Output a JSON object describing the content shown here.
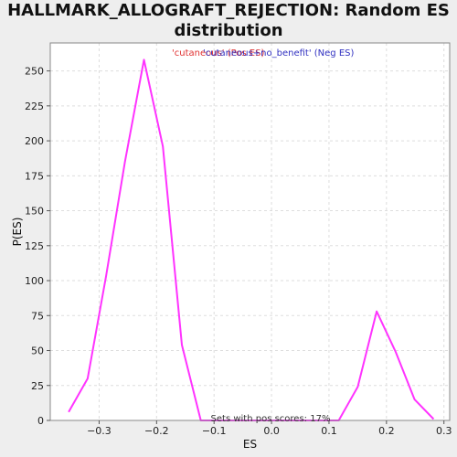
{
  "chart_data": {
    "type": "line",
    "title": "HALLMARK_ALLOGRAFT_REJECTION: Random ES\ndistribution",
    "xlabel": "ES",
    "ylabel": "P(ES)",
    "xlim": [
      -0.385,
      0.31
    ],
    "ylim": [
      0,
      270
    ],
    "x_ticks": [
      -0.3,
      -0.2,
      -0.1,
      0.0,
      0.1,
      0.2,
      0.3
    ],
    "x_tick_labels": [
      "−0.3",
      "−0.2",
      "−0.1",
      "0.0",
      "0.1",
      "0.2",
      "0.3"
    ],
    "y_ticks": [
      0,
      25,
      50,
      75,
      100,
      125,
      150,
      175,
      200,
      225,
      250
    ],
    "y_tick_labels": [
      "0",
      "25",
      "50",
      "75",
      "100",
      "125",
      "150",
      "175",
      "200",
      "225",
      "250"
    ],
    "grid": true,
    "legend": {
      "placement": "top-center",
      "entries": [
        {
          "label": "'cutaneous' (Pos ES)",
          "color": "#e03030"
        },
        {
          "label": "'cutaneous+no_benefit' (Neg ES)",
          "color": "#3030c0"
        }
      ]
    },
    "annotation": "Sets with pos scores: 17%",
    "series": [
      {
        "color": "#ff33ff",
        "x": [
          -0.353,
          -0.32,
          -0.288,
          -0.255,
          -0.222,
          -0.189,
          -0.156,
          -0.123,
          -0.09,
          -0.057,
          -0.024,
          0.009,
          0.042,
          0.075,
          0.117,
          0.15,
          0.183,
          0.216,
          0.249,
          0.282
        ],
        "y": [
          6,
          30,
          103,
          185,
          258,
          196,
          54,
          0,
          0,
          0,
          0,
          0,
          0,
          0,
          0,
          24,
          78,
          49,
          15,
          1
        ]
      }
    ]
  }
}
